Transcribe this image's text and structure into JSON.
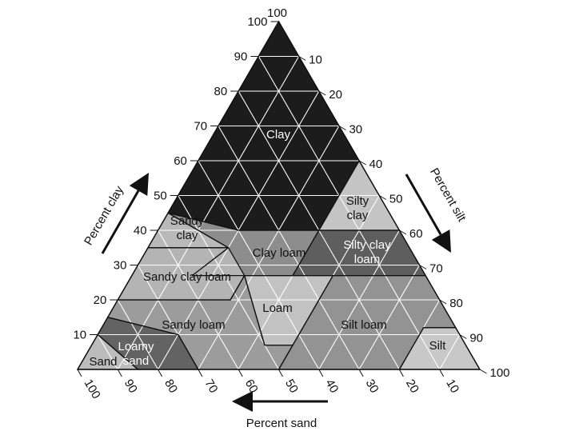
{
  "diagram": {
    "ticks": {
      "left": [
        "10",
        "20",
        "30",
        "40",
        "50",
        "60",
        "70",
        "80",
        "90",
        "100"
      ],
      "right": [
        "10",
        "20",
        "30",
        "40",
        "50",
        "60",
        "70",
        "80",
        "90",
        "100"
      ],
      "bottom": [
        "100",
        "90",
        "80",
        "70",
        "60",
        "50",
        "40",
        "30",
        "20",
        "10"
      ]
    },
    "axis_titles": {
      "clay": "Percent clay",
      "silt": "Percent silt",
      "sand": "Percent sand"
    },
    "regions": [
      {
        "id": "clay",
        "lines": [
          "Clay"
        ],
        "fill": "#1c1c1c",
        "text_color": "#ffffff"
      },
      {
        "id": "silty-clay",
        "lines": [
          "Silty",
          "clay"
        ],
        "fill": "#c4c4c4",
        "text_color": "#111111"
      },
      {
        "id": "sandy-clay",
        "lines": [
          "Sandy",
          "clay"
        ],
        "fill": "#b9b9b9",
        "text_color": "#111111"
      },
      {
        "id": "clay-loam",
        "lines": [
          "Clay loam"
        ],
        "fill": "#8d8d8d",
        "text_color": "#111111"
      },
      {
        "id": "silty-clay-loam",
        "lines": [
          "Silty clay",
          "loam"
        ],
        "fill": "#5e5e5e",
        "text_color": "#ffffff"
      },
      {
        "id": "sandy-clay-loam",
        "lines": [
          "Sandy clay loam"
        ],
        "fill": "#b4b4b4",
        "text_color": "#111111"
      },
      {
        "id": "loam",
        "lines": [
          "Loam"
        ],
        "fill": "#c2c2c2",
        "text_color": "#111111"
      },
      {
        "id": "sandy-loam",
        "lines": [
          "Sandy loam"
        ],
        "fill": "#9c9c9c",
        "text_color": "#111111"
      },
      {
        "id": "silt-loam",
        "lines": [
          "Silt loam"
        ],
        "fill": "#939393",
        "text_color": "#111111"
      },
      {
        "id": "loamy-sand",
        "lines": [
          "Loamy",
          "sand"
        ],
        "fill": "#636363",
        "text_color": "#ffffff"
      },
      {
        "id": "sand",
        "lines": [
          "Sand"
        ],
        "fill": "#bcbcbc",
        "text_color": "#111111"
      },
      {
        "id": "silt",
        "lines": [
          "Silt"
        ],
        "fill": "#c8c8c8",
        "text_color": "#111111"
      }
    ]
  }
}
